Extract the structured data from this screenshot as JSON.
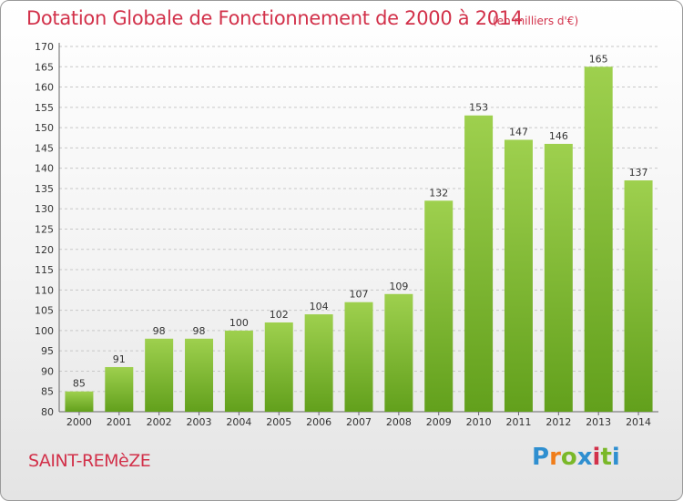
{
  "header": {
    "title": "Dotation Globale de Fonctionnement de 2000 à 2014",
    "unit": "(en milliers d'€)"
  },
  "footer": {
    "commune": "SAINT-REMèZE",
    "logo_text": "Proxiti"
  },
  "colors": {
    "accent": "#d2314a",
    "bar_light": "#9ed04e",
    "bar_dark": "#62a01c",
    "logo": [
      "#2f8fd0",
      "#f07d1a",
      "#7ab829",
      "#2f8fd0",
      "#d2314a",
      "#7ab829",
      "#2f8fd0"
    ]
  },
  "chart_data": {
    "type": "bar",
    "categories": [
      "2000",
      "2001",
      "2002",
      "2003",
      "2004",
      "2005",
      "2006",
      "2007",
      "2008",
      "2009",
      "2010",
      "2011",
      "2012",
      "2013",
      "2014"
    ],
    "values": [
      85,
      91,
      98,
      98,
      100,
      102,
      104,
      107,
      109,
      132,
      153,
      147,
      146,
      165,
      137
    ],
    "ylim": [
      80,
      170
    ],
    "yticks": [
      80,
      85,
      90,
      95,
      100,
      105,
      110,
      115,
      120,
      125,
      130,
      135,
      140,
      145,
      150,
      155,
      160,
      165,
      170
    ],
    "grid": true
  }
}
